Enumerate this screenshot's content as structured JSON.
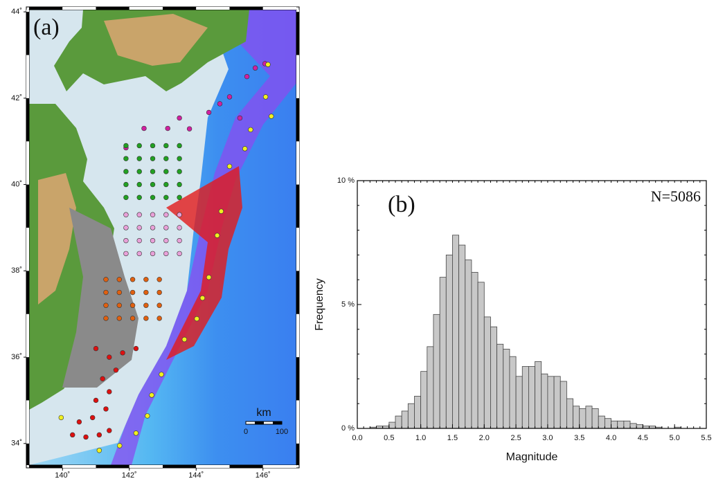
{
  "chart_data": [
    {
      "type": "map",
      "title": "(a)",
      "xlim": [
        139,
        147
      ],
      "ylim": [
        33.5,
        44.05
      ],
      "xticks": [
        {
          "value": 140,
          "label": "140˚"
        },
        {
          "value": 142,
          "label": "142˚"
        },
        {
          "value": 144,
          "label": "144˚"
        },
        {
          "value": 146,
          "label": "146˚"
        }
      ],
      "yticks": [
        {
          "value": 34,
          "label": "34˚"
        },
        {
          "value": 36,
          "label": "36˚"
        },
        {
          "value": 38,
          "label": "38˚"
        },
        {
          "value": 40,
          "label": "40˚"
        },
        {
          "value": 42,
          "label": "42˚"
        },
        {
          "value": 44,
          "label": "44˚"
        }
      ],
      "scale_bar": {
        "unit": "km",
        "labels": [
          "0",
          "100"
        ]
      },
      "series": [
        {
          "color": "#d020a0",
          "x": [
            141.9,
            142.44,
            143.15,
            143.8,
            144.38,
            145.0,
            145.52,
            146.06,
            145.31,
            144.71,
            143.5,
            145.77
          ],
          "y": [
            40.85,
            41.3,
            41.3,
            41.29,
            41.67,
            42.03,
            42.5,
            42.8,
            41.54,
            41.87,
            41.54,
            42.7
          ]
        },
        {
          "color": "#22a022",
          "x": [
            141.9,
            142.3,
            142.7,
            143.1,
            143.5,
            141.9,
            142.3,
            142.7,
            143.1,
            143.5,
            141.9,
            142.3,
            142.7,
            143.1,
            143.5,
            141.9,
            142.3,
            142.7,
            143.1,
            143.5,
            141.9,
            142.3,
            142.7,
            143.1,
            143.5
          ],
          "y": [
            40.9,
            40.9,
            40.9,
            40.9,
            40.9,
            40.6,
            40.6,
            40.6,
            40.6,
            40.6,
            40.3,
            40.3,
            40.3,
            40.3,
            40.3,
            40.0,
            40.0,
            40.0,
            40.0,
            40.0,
            39.7,
            39.7,
            39.7,
            39.7,
            39.7
          ]
        },
        {
          "color": "#e8a0d8",
          "x": [
            141.9,
            142.3,
            142.7,
            143.1,
            143.5,
            141.9,
            142.3,
            142.7,
            143.1,
            143.5,
            141.9,
            142.3,
            142.7,
            143.1,
            143.5,
            141.9,
            142.3,
            142.7,
            143.1,
            143.5
          ],
          "y": [
            39.3,
            39.3,
            39.3,
            39.3,
            39.3,
            39.0,
            39.0,
            39.0,
            39.0,
            39.0,
            38.7,
            38.7,
            38.7,
            38.7,
            38.7,
            38.4,
            38.4,
            38.4,
            38.4,
            38.4
          ]
        },
        {
          "color": "#e06010",
          "x": [
            141.3,
            141.7,
            142.1,
            142.5,
            142.9,
            141.3,
            141.7,
            142.1,
            142.5,
            142.9,
            141.3,
            141.7,
            142.1,
            142.5,
            142.9,
            141.3,
            141.7,
            142.1,
            142.5,
            142.9
          ],
          "y": [
            37.8,
            37.8,
            37.8,
            37.8,
            37.8,
            37.5,
            37.5,
            37.5,
            37.5,
            37.5,
            37.2,
            37.2,
            37.2,
            37.2,
            37.2,
            36.9,
            36.9,
            36.9,
            36.9,
            36.9
          ]
        },
        {
          "color": "#dd1010",
          "x": [
            140.3,
            140.7,
            141.1,
            141.4,
            140.5,
            140.9,
            141.3,
            141.0,
            141.4,
            141.2,
            141.6,
            141.4,
            141.8,
            142.2,
            141.0
          ],
          "y": [
            34.2,
            34.15,
            34.2,
            34.3,
            34.5,
            34.6,
            34.8,
            35.0,
            35.2,
            35.5,
            35.7,
            36.0,
            36.1,
            36.2,
            36.2
          ]
        },
        {
          "color": "#f0f020",
          "x": [
            146.15,
            146.08,
            146.25,
            145.63,
            145.46,
            145.0,
            144.75,
            144.63,
            144.38,
            144.19,
            144.02,
            143.65,
            142.96,
            142.67,
            142.54,
            142.2,
            141.71,
            141.1,
            139.96
          ],
          "y": [
            42.78,
            42.03,
            41.58,
            41.27,
            40.83,
            40.42,
            39.38,
            38.82,
            37.85,
            37.37,
            36.89,
            36.41,
            35.6,
            35.12,
            34.64,
            34.24,
            33.95,
            33.84,
            34.6
          ]
        }
      ]
    },
    {
      "type": "histogram",
      "title": "(b)",
      "annotation": "N=5086",
      "x_label": "Magnitude",
      "y_label": "Frequency",
      "color": "#c8c8c8",
      "bins": [
        0.0,
        0.1,
        0.2,
        0.3,
        0.4,
        0.5,
        0.6,
        0.7,
        0.8,
        0.9,
        1.0,
        1.1,
        1.2,
        1.3,
        1.4,
        1.5,
        1.6,
        1.7,
        1.8,
        1.9,
        2.0,
        2.1,
        2.2,
        2.3,
        2.4,
        2.5,
        2.6,
        2.7,
        2.8,
        2.9,
        3.0,
        3.1,
        3.2,
        3.3,
        3.4,
        3.5,
        3.6,
        3.7,
        3.8,
        3.9,
        4.0,
        4.1,
        4.2,
        4.3,
        4.4,
        4.5,
        4.6,
        4.7,
        4.8,
        4.9,
        5.0,
        5.1,
        5.2,
        5.3,
        5.4,
        5.5
      ],
      "counts": [
        0,
        0,
        0.05,
        0.1,
        0.1,
        0.25,
        0.5,
        0.7,
        1.0,
        1.3,
        2.3,
        3.3,
        4.6,
        6.1,
        7.0,
        7.8,
        7.4,
        6.8,
        6.3,
        5.9,
        4.5,
        4.1,
        3.4,
        3.2,
        2.9,
        2.1,
        2.5,
        2.5,
        2.7,
        2.2,
        2.1,
        2.1,
        1.9,
        1.2,
        0.9,
        0.8,
        0.9,
        0.8,
        0.5,
        0.4,
        0.3,
        0.3,
        0.3,
        0.2,
        0.15,
        0.1,
        0.1,
        0.05,
        0,
        0,
        0.05,
        0,
        0,
        0,
        0
      ],
      "xlim": [
        0.0,
        5.5
      ],
      "ylim": [
        0,
        10
      ],
      "xticks": [
        {
          "value": 0.0,
          "label": "0.0"
        },
        0.5,
        {
          "value": 1.0,
          "label": "1.0"
        },
        1.5,
        {
          "value": 2.0,
          "label": "2.0"
        },
        2.5,
        {
          "value": 3.0,
          "label": "3.0"
        },
        3.5,
        {
          "value": 4.0,
          "label": "4.0"
        },
        4.5,
        {
          "value": 5.0,
          "label": "5.0"
        },
        5.5
      ],
      "yticks": [
        {
          "value": 0,
          "label": "0 %"
        },
        {
          "value": 5,
          "label": "5 %"
        },
        {
          "value": 10,
          "label": "10 %"
        }
      ]
    }
  ]
}
